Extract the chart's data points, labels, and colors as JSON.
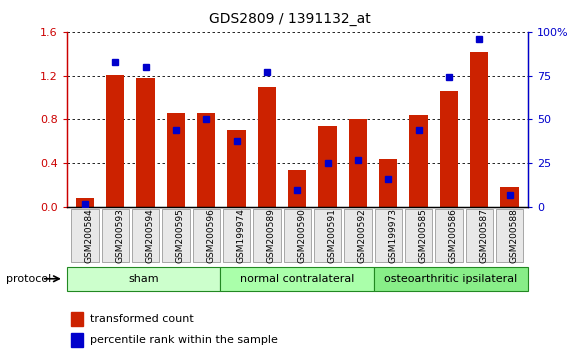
{
  "title": "GDS2809 / 1391132_at",
  "categories": [
    "GSM200584",
    "GSM200593",
    "GSM200594",
    "GSM200595",
    "GSM200596",
    "GSM199974",
    "GSM200589",
    "GSM200590",
    "GSM200591",
    "GSM200592",
    "GSM199973",
    "GSM200585",
    "GSM200586",
    "GSM200587",
    "GSM200588"
  ],
  "red_values": [
    0.08,
    1.21,
    1.18,
    0.86,
    0.86,
    0.7,
    1.1,
    0.34,
    0.74,
    0.8,
    0.44,
    0.84,
    1.06,
    1.42,
    0.18
  ],
  "blue_percentile": [
    2,
    83,
    80,
    44,
    50,
    38,
    77,
    10,
    25,
    27,
    16,
    44,
    74,
    96,
    7
  ],
  "groups": [
    {
      "label": "sham",
      "start": 0,
      "end": 4,
      "color": "#ccffcc"
    },
    {
      "label": "normal contralateral",
      "start": 5,
      "end": 9,
      "color": "#aaffaa"
    },
    {
      "label": "osteoarthritic ipsilateral",
      "start": 10,
      "end": 14,
      "color": "#88ee88"
    }
  ],
  "left_ylim": [
    0,
    1.6
  ],
  "right_ylim": [
    0,
    100
  ],
  "left_yticks": [
    0,
    0.4,
    0.8,
    1.2,
    1.6
  ],
  "right_yticks": [
    0,
    25,
    50,
    75,
    100
  ],
  "right_yticklabels": [
    "0",
    "25",
    "50",
    "75",
    "100%"
  ],
  "left_ycolor": "#cc0000",
  "right_ycolor": "#0000cc",
  "bar_color": "#cc2200",
  "marker_color": "#0000cc",
  "legend_items": [
    "transformed count",
    "percentile rank within the sample"
  ],
  "protocol_label": "protocol",
  "background_color": "#ffffff",
  "figsize": [
    5.8,
    3.54
  ]
}
